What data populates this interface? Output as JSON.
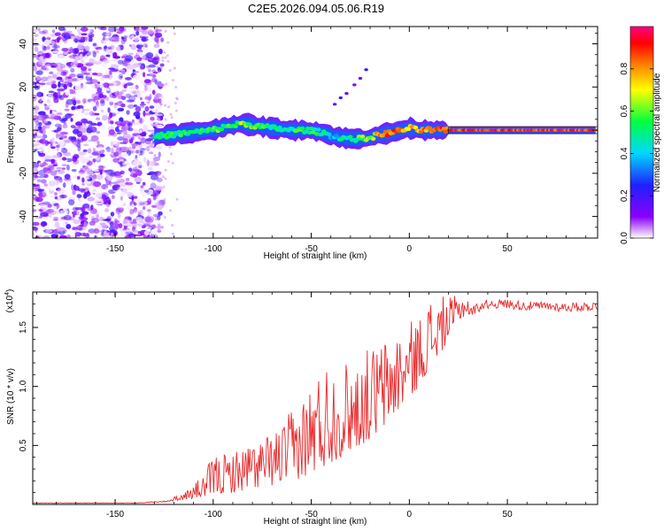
{
  "title": "C2E5.2026.094.05.06.R19",
  "chart_data": [
    {
      "type": "heatmap",
      "title": "C2E5.2026.094.05.06.R19",
      "xlabel": "Height of straight line (km)",
      "ylabel": "Frequency (Hz)",
      "xlim": [
        -192,
        96
      ],
      "ylim": [
        -50,
        48
      ],
      "xticks": [
        -150,
        -100,
        -50,
        0,
        50
      ],
      "yticks": [
        -40,
        -20,
        0,
        20,
        40
      ],
      "x_tick_labels": [
        "-150",
        "-100",
        "-50",
        "0",
        "50"
      ],
      "y_tick_labels": [
        "-40",
        "-20",
        "0",
        "20",
        "40"
      ],
      "colorbar": {
        "label": "Normalized spectral amplitude",
        "range": [
          0,
          1
        ],
        "ticks": [
          0.0,
          0.2,
          0.4,
          0.6,
          0.8
        ],
        "tick_labels": [
          "0.0",
          "0.2",
          "0.4",
          "0.6",
          "0.8"
        ],
        "colors": [
          "#ffffff",
          "#8a00ff",
          "#2020ff",
          "#00d8ff",
          "#00ff40",
          "#ffff00",
          "#ff8000",
          "#ff0000",
          "#ff0080"
        ]
      },
      "noise_region_x": [
        -192,
        -130
      ],
      "ridge": {
        "x": [
          -130,
          -120,
          -110,
          -100,
          -92,
          -85,
          -78,
          -70,
          -60,
          -52,
          -45,
          -38,
          -30,
          -22,
          -15,
          -8,
          0,
          5,
          12,
          20,
          40,
          60,
          80,
          96
        ],
        "freq": [
          -3,
          -2,
          -1,
          0,
          2,
          3,
          2,
          1,
          0,
          0,
          -1,
          -3,
          -4,
          -4,
          -2,
          -1,
          1,
          0,
          0,
          0,
          0,
          0,
          0,
          0
        ],
        "amplitude": [
          0.45,
          0.5,
          0.5,
          0.55,
          0.55,
          0.6,
          0.55,
          0.5,
          0.5,
          0.55,
          0.45,
          0.4,
          0.5,
          0.6,
          0.8,
          0.85,
          0.7,
          0.8,
          0.85,
          0.9,
          0.9,
          0.9,
          0.9,
          0.9
        ]
      },
      "harmonic_trace": {
        "x": [
          -38,
          -35,
          -32,
          -28,
          -25,
          -22
        ],
        "freq": [
          12,
          15,
          17,
          21,
          24,
          28
        ]
      }
    },
    {
      "type": "line",
      "xlabel": "Height of straight line (km)",
      "ylabel": "SNR (10 * v/v)",
      "y_scale_label": "(x10",
      "y_scale_exponent": "4",
      "y_scale_suffix": ")",
      "xlim": [
        -192,
        96
      ],
      "ylim": [
        0,
        1.8
      ],
      "xticks": [
        -150,
        -100,
        -50,
        0,
        50
      ],
      "yticks": [
        0.5,
        1.0,
        1.5
      ],
      "x_tick_labels": [
        "-150",
        "-100",
        "-50",
        "0",
        "50"
      ],
      "y_tick_labels": [
        "0.5",
        "1.0",
        "1.5"
      ],
      "color": "#e8282a",
      "envelope": {
        "x": [
          -192,
          -140,
          -125,
          -115,
          -105,
          -100,
          -90,
          -80,
          -70,
          -60,
          -50,
          -45,
          -40,
          -35,
          -30,
          -25,
          -20,
          -15,
          -10,
          -5,
          0,
          5,
          10,
          15,
          20,
          25,
          30,
          35,
          40,
          50,
          60,
          70,
          80,
          96
        ],
        "base": [
          0.01,
          0.01,
          0.02,
          0.04,
          0.06,
          0.08,
          0.1,
          0.13,
          0.16,
          0.2,
          0.25,
          0.3,
          0.35,
          0.4,
          0.45,
          0.5,
          0.55,
          0.6,
          0.7,
          0.8,
          0.9,
          1.0,
          1.15,
          1.25,
          1.4,
          1.55,
          1.62,
          1.67,
          1.7,
          1.7,
          1.68,
          1.68,
          1.67,
          1.68
        ],
        "peak": [
          0.015,
          0.015,
          0.03,
          0.1,
          0.25,
          0.42,
          0.45,
          0.55,
          0.6,
          0.8,
          1.05,
          1.2,
          1.25,
          1.2,
          1.25,
          1.25,
          1.35,
          1.4,
          1.45,
          1.5,
          1.55,
          1.6,
          1.75,
          1.78,
          1.75,
          1.78,
          1.8,
          1.8,
          1.8,
          1.76,
          1.74,
          1.73,
          1.73,
          1.72
        ]
      }
    }
  ]
}
